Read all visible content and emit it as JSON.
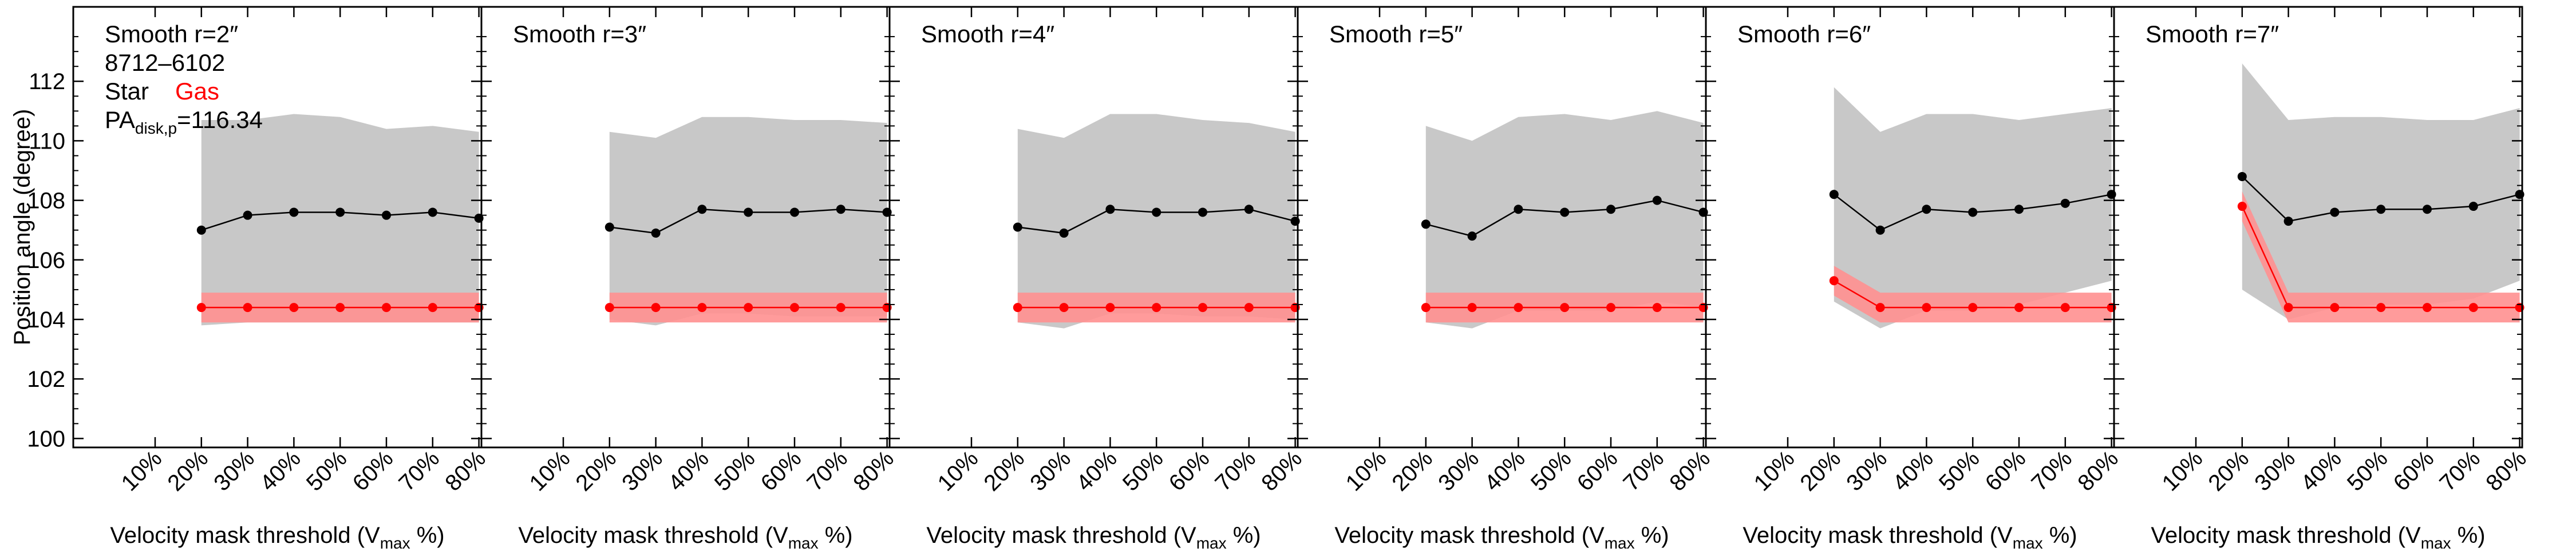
{
  "figure": {
    "ylabel": "Position angle (degree)",
    "xlabel_main": "Velocity mask threshold (V",
    "xlabel_sub": "max",
    "xlabel_end": " %)",
    "galaxy_id": "8712–6102",
    "legend": {
      "star": "Star",
      "gas": "Gas"
    },
    "pa_main": "PA",
    "pa_sub": "disk,p",
    "pa_value": "=116.34",
    "colors": {
      "star": "#000000",
      "gas": "#ff0000",
      "star_band": "#c8c8c8",
      "gas_band": "#ff9090"
    }
  },
  "chart_data": [
    {
      "type": "line",
      "title": "Smooth r=2″",
      "x_categories": [
        "10%",
        "20%",
        "30%",
        "40%",
        "50%",
        "60%",
        "70%",
        "80%"
      ],
      "xlabel": "Velocity mask threshold (Vmax %)",
      "ylabel": "Position angle (degree)",
      "ylim": [
        99.7,
        114.5
      ],
      "yticks": [
        100,
        102,
        104,
        106,
        108,
        110,
        112
      ],
      "series": [
        {
          "name": "Star",
          "color": "#000000",
          "x": [
            "20%",
            "30%",
            "40%",
            "50%",
            "60%",
            "70%",
            "80%"
          ],
          "values": [
            107.0,
            107.5,
            107.6,
            107.6,
            107.5,
            107.6,
            107.4
          ],
          "band_low": [
            103.8,
            103.9,
            103.9,
            103.9,
            103.9,
            103.9,
            103.9
          ],
          "band_high": [
            110.7,
            110.7,
            110.9,
            110.8,
            110.4,
            110.5,
            110.3
          ]
        },
        {
          "name": "Gas",
          "color": "#ff0000",
          "x": [
            "20%",
            "30%",
            "40%",
            "50%",
            "60%",
            "70%",
            "80%"
          ],
          "values": [
            104.4,
            104.4,
            104.4,
            104.4,
            104.4,
            104.4,
            104.4
          ],
          "band_low": [
            103.9,
            103.9,
            103.9,
            103.9,
            103.9,
            103.9,
            103.9
          ],
          "band_high": [
            104.9,
            104.9,
            104.9,
            104.9,
            104.9,
            104.9,
            104.9
          ]
        }
      ]
    },
    {
      "type": "line",
      "title": "Smooth r=3″",
      "x_categories": [
        "10%",
        "20%",
        "30%",
        "40%",
        "50%",
        "60%",
        "70%",
        "80%"
      ],
      "xlabel": "Velocity mask threshold (Vmax %)",
      "ylim": [
        99.7,
        114.5
      ],
      "series": [
        {
          "name": "Star",
          "color": "#000000",
          "x": [
            "20%",
            "30%",
            "40%",
            "50%",
            "60%",
            "70%",
            "80%"
          ],
          "values": [
            107.1,
            106.9,
            107.7,
            107.6,
            107.6,
            107.7,
            107.6
          ],
          "band_low": [
            104.0,
            103.8,
            104.2,
            104.2,
            104.1,
            104.1,
            104.1
          ],
          "band_high": [
            110.3,
            110.1,
            110.8,
            110.8,
            110.7,
            110.7,
            110.6
          ]
        },
        {
          "name": "Gas",
          "color": "#ff0000",
          "x": [
            "20%",
            "30%",
            "40%",
            "50%",
            "60%",
            "70%",
            "80%"
          ],
          "values": [
            104.4,
            104.4,
            104.4,
            104.4,
            104.4,
            104.4,
            104.4
          ],
          "band_low": [
            103.9,
            103.9,
            103.9,
            103.9,
            103.9,
            103.9,
            103.9
          ],
          "band_high": [
            104.9,
            104.9,
            104.9,
            104.9,
            104.9,
            104.9,
            104.9
          ]
        }
      ]
    },
    {
      "type": "line",
      "title": "Smooth r=4″",
      "x_categories": [
        "10%",
        "20%",
        "30%",
        "40%",
        "50%",
        "60%",
        "70%",
        "80%"
      ],
      "xlabel": "Velocity mask threshold (Vmax %)",
      "ylim": [
        99.7,
        114.5
      ],
      "series": [
        {
          "name": "Star",
          "color": "#000000",
          "x": [
            "20%",
            "30%",
            "40%",
            "50%",
            "60%",
            "70%",
            "80%"
          ],
          "values": [
            107.1,
            106.9,
            107.7,
            107.6,
            107.6,
            107.7,
            107.3
          ],
          "band_low": [
            103.9,
            103.7,
            104.2,
            104.2,
            104.1,
            104.1,
            104.0
          ],
          "band_high": [
            110.4,
            110.1,
            110.9,
            110.9,
            110.7,
            110.6,
            110.3
          ]
        },
        {
          "name": "Gas",
          "color": "#ff0000",
          "x": [
            "20%",
            "30%",
            "40%",
            "50%",
            "60%",
            "70%",
            "80%"
          ],
          "values": [
            104.4,
            104.4,
            104.4,
            104.4,
            104.4,
            104.4,
            104.4
          ],
          "band_low": [
            103.9,
            103.9,
            103.9,
            103.9,
            103.9,
            103.9,
            103.9
          ],
          "band_high": [
            104.9,
            104.9,
            104.9,
            104.9,
            104.9,
            104.9,
            104.9
          ]
        }
      ]
    },
    {
      "type": "line",
      "title": "Smooth r=5″",
      "x_categories": [
        "10%",
        "20%",
        "30%",
        "40%",
        "50%",
        "60%",
        "70%",
        "80%"
      ],
      "xlabel": "Velocity mask threshold (Vmax %)",
      "ylim": [
        99.7,
        114.5
      ],
      "series": [
        {
          "name": "Star",
          "color": "#000000",
          "x": [
            "20%",
            "30%",
            "40%",
            "50%",
            "60%",
            "70%",
            "80%"
          ],
          "values": [
            107.2,
            106.8,
            107.7,
            107.6,
            107.7,
            108.0,
            107.6
          ],
          "band_low": [
            103.9,
            103.7,
            104.3,
            104.3,
            104.3,
            104.6,
            104.4
          ],
          "band_high": [
            110.5,
            110.0,
            110.8,
            110.9,
            110.7,
            111.0,
            110.6
          ]
        },
        {
          "name": "Gas",
          "color": "#ff0000",
          "x": [
            "20%",
            "30%",
            "40%",
            "50%",
            "60%",
            "70%",
            "80%"
          ],
          "values": [
            104.4,
            104.4,
            104.4,
            104.4,
            104.4,
            104.4,
            104.4
          ],
          "band_low": [
            103.9,
            103.9,
            103.9,
            103.9,
            103.9,
            103.9,
            103.9
          ],
          "band_high": [
            104.9,
            104.9,
            104.9,
            104.9,
            104.9,
            104.9,
            104.9
          ]
        }
      ]
    },
    {
      "type": "line",
      "title": "Smooth r=6″",
      "x_categories": [
        "10%",
        "20%",
        "30%",
        "40%",
        "50%",
        "60%",
        "70%",
        "80%"
      ],
      "xlabel": "Velocity mask threshold (Vmax %)",
      "ylim": [
        99.7,
        114.5
      ],
      "series": [
        {
          "name": "Star",
          "color": "#000000",
          "x": [
            "20%",
            "30%",
            "40%",
            "50%",
            "60%",
            "70%",
            "80%"
          ],
          "values": [
            108.2,
            107.0,
            107.7,
            107.6,
            107.7,
            107.9,
            108.2
          ],
          "band_low": [
            104.6,
            103.7,
            104.3,
            104.3,
            104.5,
            104.9,
            105.3
          ],
          "band_high": [
            111.8,
            110.3,
            110.9,
            110.9,
            110.7,
            110.9,
            111.1
          ]
        },
        {
          "name": "Gas",
          "color": "#ff0000",
          "x": [
            "20%",
            "30%",
            "40%",
            "50%",
            "60%",
            "70%",
            "80%"
          ],
          "values": [
            105.3,
            104.4,
            104.4,
            104.4,
            104.4,
            104.4,
            104.4
          ],
          "band_low": [
            104.8,
            103.9,
            103.9,
            103.9,
            103.9,
            103.9,
            103.9
          ],
          "band_high": [
            105.8,
            104.9,
            104.9,
            104.9,
            104.9,
            104.9,
            104.9
          ]
        }
      ]
    },
    {
      "type": "line",
      "title": "Smooth r=7″",
      "x_categories": [
        "10%",
        "20%",
        "30%",
        "40%",
        "50%",
        "60%",
        "70%",
        "80%"
      ],
      "xlabel": "Velocity mask threshold (Vmax %)",
      "ylim": [
        99.7,
        114.5
      ],
      "series": [
        {
          "name": "Star",
          "color": "#000000",
          "x": [
            "20%",
            "30%",
            "40%",
            "50%",
            "60%",
            "70%",
            "80%"
          ],
          "values": [
            108.8,
            107.3,
            107.6,
            107.7,
            107.7,
            107.8,
            108.2
          ],
          "band_low": [
            105.0,
            104.0,
            104.4,
            104.5,
            104.5,
            104.7,
            105.3
          ],
          "band_high": [
            112.6,
            110.7,
            110.8,
            110.8,
            110.7,
            110.7,
            111.1
          ]
        },
        {
          "name": "Gas",
          "color": "#ff0000",
          "x": [
            "20%",
            "30%",
            "40%",
            "50%",
            "60%",
            "70%",
            "80%"
          ],
          "values": [
            107.8,
            104.4,
            104.4,
            104.4,
            104.4,
            104.4,
            104.4
          ],
          "band_low": [
            107.3,
            103.9,
            103.9,
            103.9,
            103.9,
            103.9,
            103.9
          ],
          "band_high": [
            108.3,
            104.9,
            104.9,
            104.9,
            104.9,
            104.9,
            104.9
          ]
        }
      ]
    }
  ]
}
